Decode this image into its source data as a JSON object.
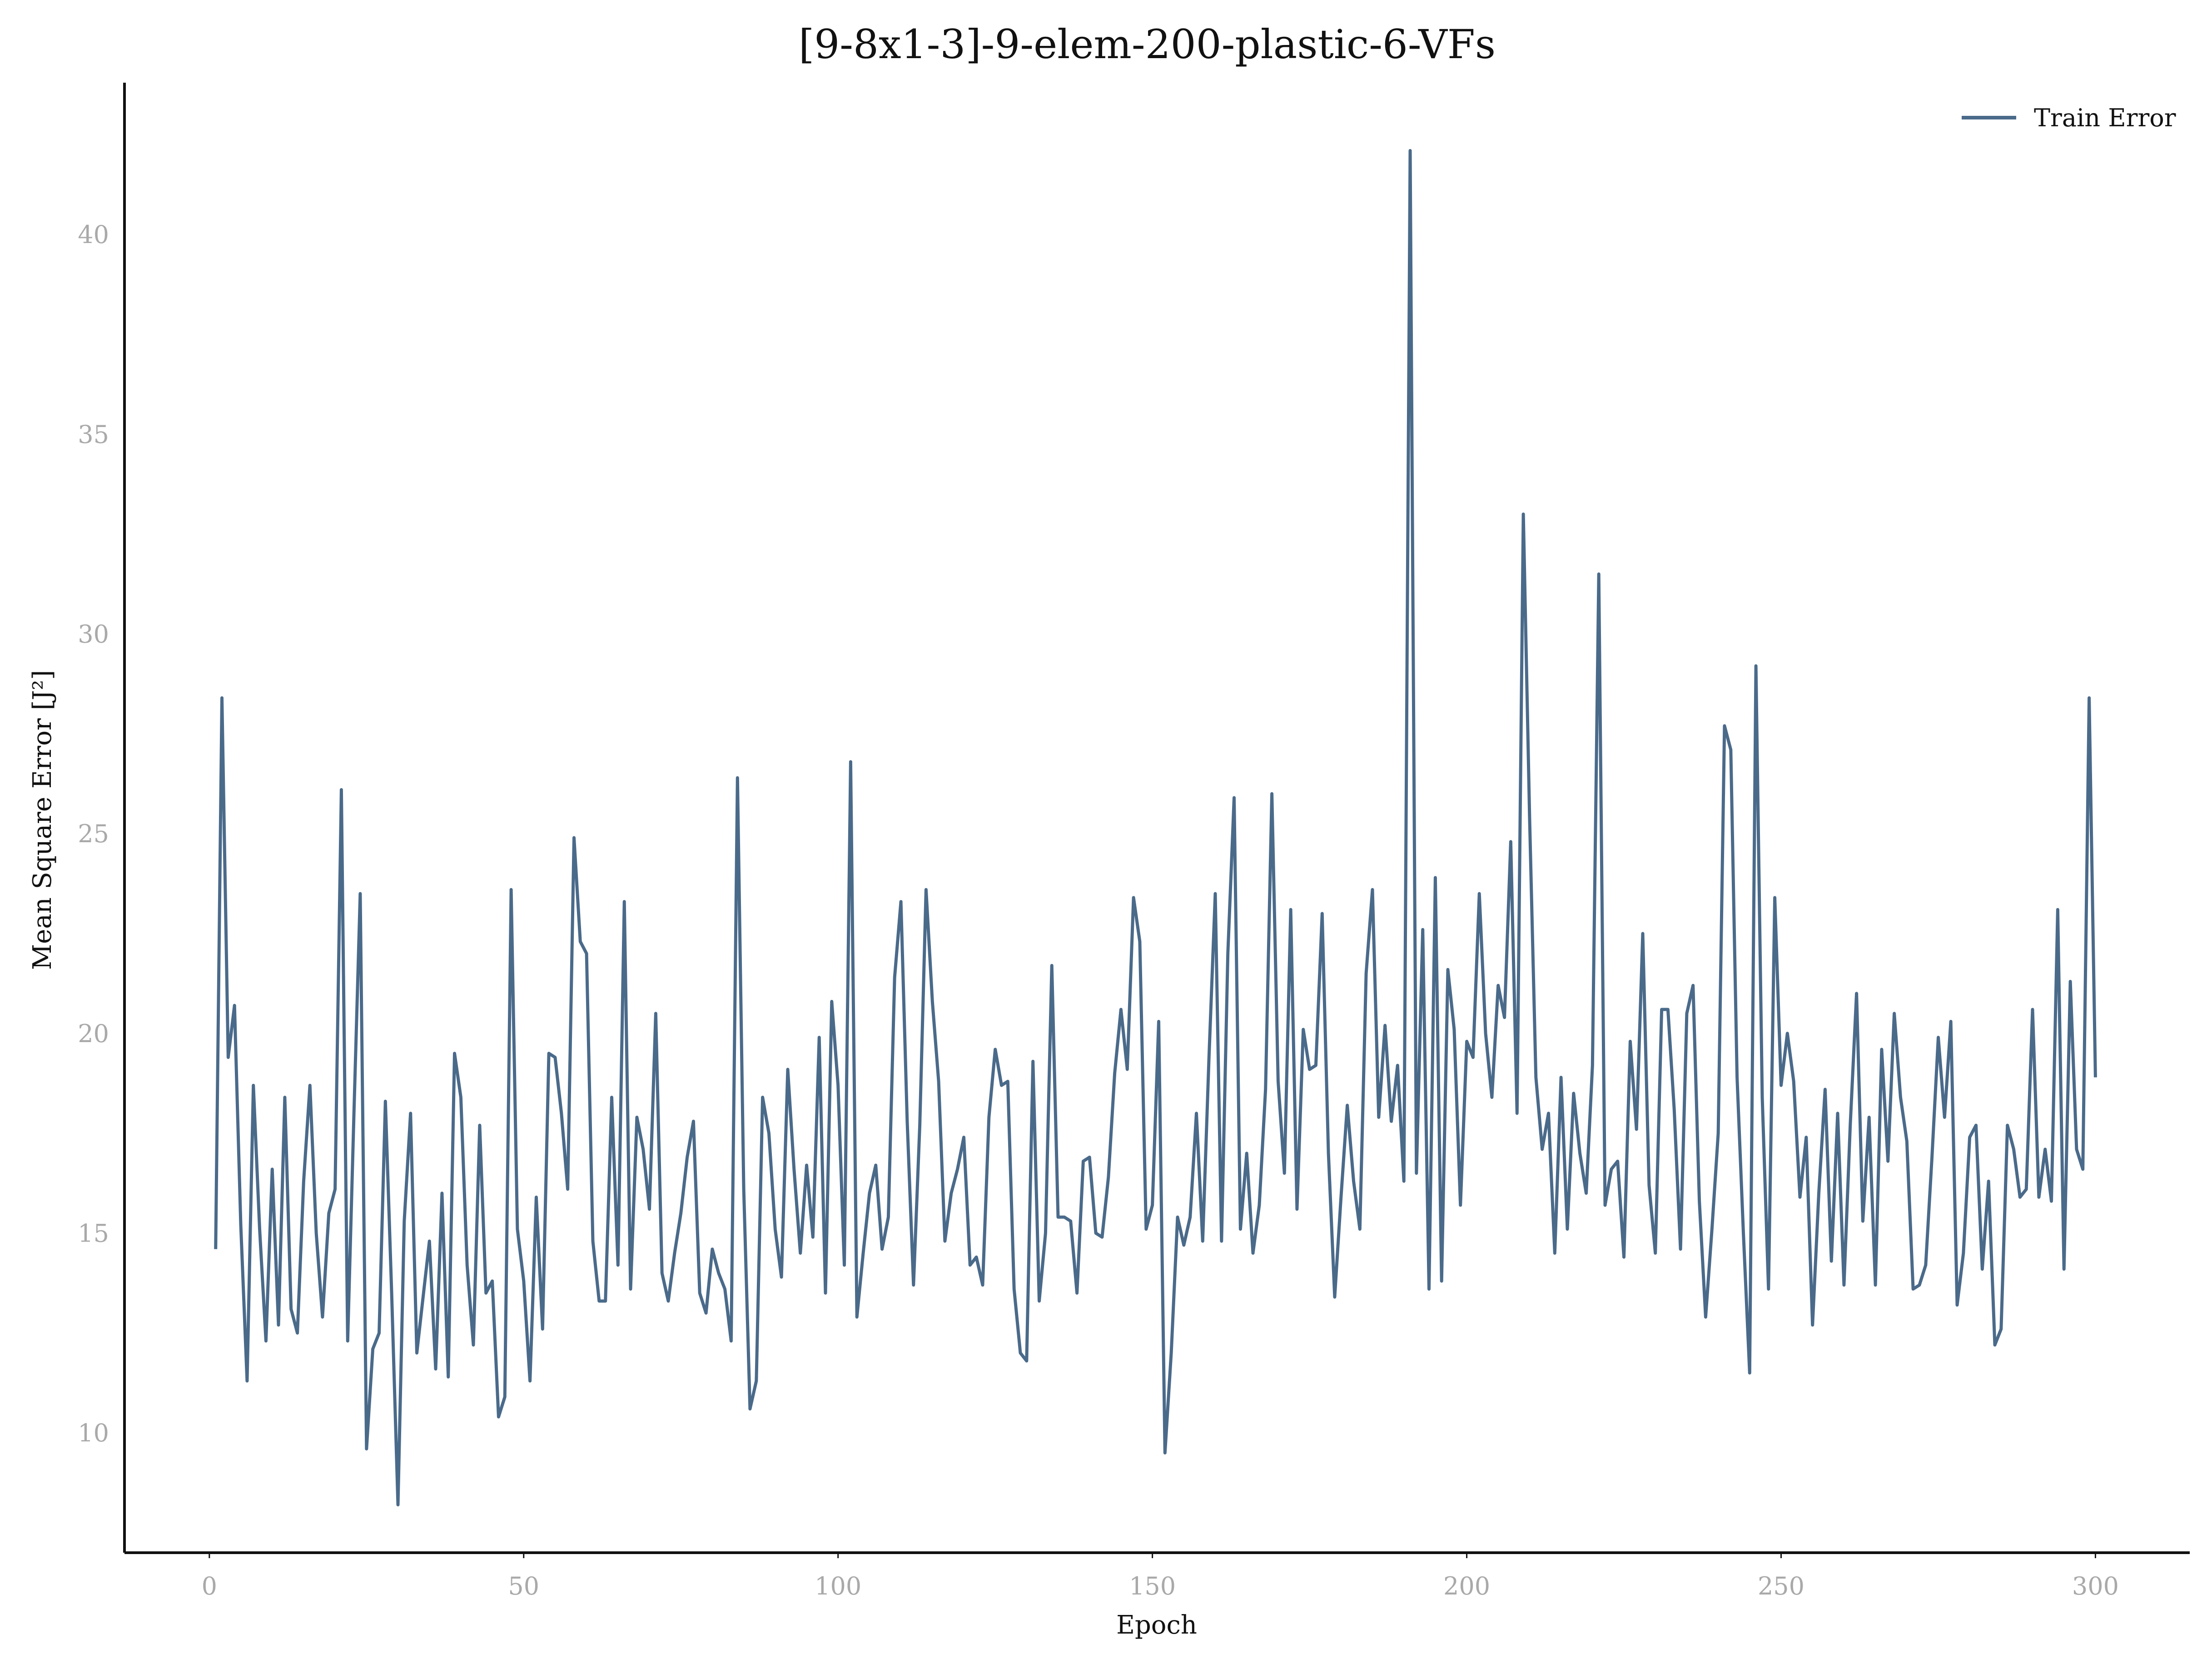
{
  "chart_data": {
    "type": "line",
    "title": "[9-8x1-3]-9-elem-200-plastic-6-VFs",
    "xlabel": "Epoch",
    "ylabel": "Mean Square Error [J²]",
    "xlim": [
      -13.5,
      315
    ],
    "ylim": [
      7,
      43.8
    ],
    "xticks": [
      0,
      50,
      100,
      150,
      200,
      250,
      300
    ],
    "yticks": [
      10,
      15,
      20,
      25,
      30,
      35,
      40
    ],
    "grid": false,
    "legend_position": "top-right",
    "series": [
      {
        "name": "Train Error",
        "color": "#4a6a8a",
        "x": [
          1,
          2,
          3,
          4,
          5,
          6,
          7,
          8,
          9,
          10,
          11,
          12,
          13,
          14,
          15,
          16,
          17,
          18,
          19,
          20,
          21,
          22,
          23,
          24,
          25,
          26,
          27,
          28,
          29,
          30,
          31,
          32,
          33,
          34,
          35,
          36,
          37,
          38,
          39,
          40,
          41,
          42,
          43,
          44,
          45,
          46,
          47,
          48,
          49,
          50,
          51,
          52,
          53,
          54,
          55,
          56,
          57,
          58,
          59,
          60,
          61,
          62,
          63,
          64,
          65,
          66,
          67,
          68,
          69,
          70,
          71,
          72,
          73,
          74,
          75,
          76,
          77,
          78,
          79,
          80,
          81,
          82,
          83,
          84,
          85,
          86,
          87,
          88,
          89,
          90,
          91,
          92,
          93,
          94,
          95,
          96,
          97,
          98,
          99,
          100,
          101,
          102,
          103,
          104,
          105,
          106,
          107,
          108,
          109,
          110,
          111,
          112,
          113,
          114,
          115,
          116,
          117,
          118,
          119,
          120,
          121,
          122,
          123,
          124,
          125,
          126,
          127,
          128,
          129,
          130,
          131,
          132,
          133,
          134,
          135,
          136,
          137,
          138,
          139,
          140,
          141,
          142,
          143,
          144,
          145,
          146,
          147,
          148,
          149,
          150,
          151,
          152,
          153,
          154,
          155,
          156,
          157,
          158,
          159,
          160,
          161,
          162,
          163,
          164,
          165,
          166,
          167,
          168,
          169,
          170,
          171,
          172,
          173,
          174,
          175,
          176,
          177,
          178,
          179,
          180,
          181,
          182,
          183,
          184,
          185,
          186,
          187,
          188,
          189,
          190,
          191,
          192,
          193,
          194,
          195,
          196,
          197,
          198,
          199,
          200,
          201,
          202,
          203,
          204,
          205,
          206,
          207,
          208,
          209,
          210,
          211,
          212,
          213,
          214,
          215,
          216,
          217,
          218,
          219,
          220,
          221,
          222,
          223,
          224,
          225,
          226,
          227,
          228,
          229,
          230,
          231,
          232,
          233,
          234,
          235,
          236,
          237,
          238,
          239,
          240,
          241,
          242,
          243,
          244,
          245,
          246,
          247,
          248,
          249,
          250,
          251,
          252,
          253,
          254,
          255,
          256,
          257,
          258,
          259,
          260,
          261,
          262,
          263,
          264,
          265,
          266,
          267,
          268,
          269,
          270,
          271,
          272,
          273,
          274,
          275,
          276,
          277,
          278,
          279,
          280,
          281,
          282,
          283,
          284,
          285,
          286,
          287,
          288,
          289,
          290,
          291,
          292,
          293,
          294,
          295,
          296,
          297,
          298,
          299,
          300
        ],
        "y": [
          14.6,
          28.4,
          19.4,
          20.7,
          15.2,
          11.3,
          18.7,
          15.1,
          12.3,
          16.6,
          12.7,
          18.4,
          13.1,
          12.5,
          16.3,
          18.7,
          15.0,
          12.9,
          15.5,
          16.1,
          26.1,
          12.3,
          18.0,
          23.5,
          9.6,
          12.1,
          12.5,
          18.3,
          13.5,
          8.2,
          15.3,
          18.0,
          12.0,
          13.4,
          14.8,
          11.6,
          16.0,
          11.4,
          19.5,
          18.4,
          14.2,
          12.2,
          17.7,
          13.5,
          13.8,
          10.4,
          10.9,
          23.6,
          15.1,
          13.8,
          11.3,
          15.9,
          12.6,
          19.5,
          19.4,
          18.0,
          16.1,
          24.9,
          22.3,
          22.0,
          14.8,
          13.3,
          13.3,
          18.4,
          14.2,
          23.3,
          13.6,
          17.9,
          17.1,
          15.6,
          20.5,
          14.0,
          13.3,
          14.5,
          15.5,
          16.9,
          17.8,
          13.5,
          13.0,
          14.6,
          14.0,
          13.6,
          12.3,
          26.4,
          16.1,
          10.6,
          11.3,
          18.4,
          17.5,
          15.1,
          13.9,
          19.1,
          16.6,
          14.5,
          16.7,
          14.9,
          19.9,
          13.5,
          20.8,
          18.7,
          14.2,
          26.8,
          12.9,
          14.5,
          16.0,
          16.7,
          14.6,
          15.4,
          21.4,
          23.3,
          17.8,
          13.7,
          17.7,
          23.6,
          20.8,
          18.8,
          14.8,
          16.0,
          16.6,
          17.4,
          14.2,
          14.4,
          13.7,
          17.9,
          19.6,
          18.7,
          18.8,
          13.6,
          12.0,
          11.8,
          19.3,
          13.3,
          15.0,
          21.7,
          15.4,
          15.4,
          15.3,
          13.5,
          16.8,
          16.9,
          15.0,
          14.9,
          16.4,
          19.0,
          20.6,
          19.1,
          23.4,
          22.3,
          15.1,
          15.7,
          20.3,
          9.5,
          12.0,
          15.4,
          14.7,
          15.4,
          18.0,
          14.8,
          19.4,
          23.5,
          14.8,
          22.0,
          25.9,
          15.1,
          17.0,
          14.5,
          15.7,
          18.6,
          26.0,
          18.8,
          16.5,
          23.1,
          15.6,
          20.1,
          19.1,
          19.2,
          23.0,
          17.0,
          13.4,
          15.9,
          18.2,
          16.3,
          15.1,
          21.5,
          23.6,
          17.9,
          20.2,
          17.8,
          19.2,
          16.3,
          42.1,
          16.5,
          22.6,
          13.6,
          23.9,
          13.8,
          21.6,
          20.1,
          15.7,
          19.8,
          19.4,
          23.5,
          20.0,
          18.4,
          21.2,
          20.4,
          24.8,
          18.0,
          33.0,
          25.4,
          18.9,
          17.1,
          18.0,
          14.5,
          18.9,
          15.1,
          18.5,
          17.0,
          16.0,
          19.2,
          31.5,
          15.7,
          16.6,
          16.8,
          14.4,
          19.8,
          17.6,
          22.5,
          16.2,
          14.5,
          20.6,
          20.6,
          18.1,
          14.6,
          20.5,
          21.2,
          15.8,
          12.9,
          15.1,
          17.5,
          27.7,
          27.1,
          18.9,
          15.0,
          11.5,
          29.2,
          18.4,
          13.6,
          23.4,
          18.7,
          20.0,
          18.8,
          15.9,
          17.4,
          12.7,
          16.0,
          18.6,
          14.3,
          18.0,
          13.7,
          17.7,
          21.0,
          15.3,
          17.9,
          13.7,
          19.6,
          16.8,
          20.5,
          18.4,
          17.3,
          13.6,
          13.7,
          14.2,
          16.9,
          19.9,
          17.9,
          20.3,
          13.2,
          14.5,
          17.4,
          17.7,
          14.1,
          16.3,
          12.2,
          12.6,
          17.7,
          17.1,
          15.9,
          16.1,
          20.6,
          15.9,
          17.1,
          15.8,
          23.1,
          14.1,
          21.3,
          17.1,
          16.6,
          28.4,
          18.9
        ]
      }
    ]
  }
}
